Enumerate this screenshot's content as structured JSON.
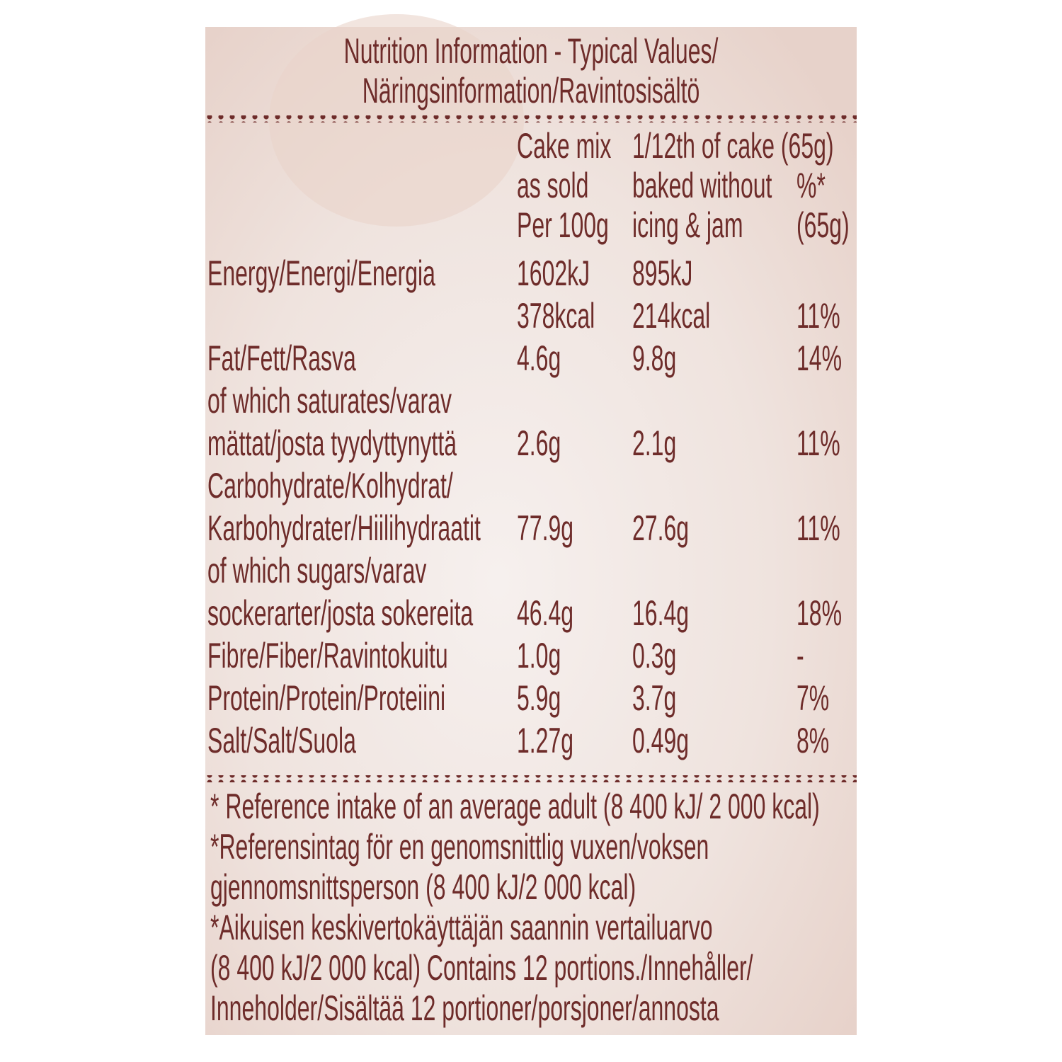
{
  "title": [
    "Nutrition Information - Typical Values/",
    "Näringsinformation/Ravintosisältö"
  ],
  "header": {
    "per100g": [
      "Cake mix",
      "as sold",
      "Per 100g"
    ],
    "per_portion": [
      "1/12th of cake (65g)",
      "baked without",
      "icing & jam"
    ],
    "ri": [
      "%*",
      "(65g)"
    ]
  },
  "rows": [
    {
      "nutrient": [
        "Energy/Energi/Energia"
      ],
      "per100g": [
        "1602kJ",
        "378kcal"
      ],
      "per_portion": [
        "895kJ",
        "214kcal"
      ],
      "ri": "11%"
    },
    {
      "nutrient": [
        "Fat/Fett/Rasva"
      ],
      "per100g": [
        "4.6g"
      ],
      "per_portion": [
        "9.8g"
      ],
      "ri": "14%"
    },
    {
      "nutrient": [
        "of which saturates/varav",
        "mättat/josta tyydyttynyttä"
      ],
      "per100g": [
        "2.6g"
      ],
      "per_portion": [
        "2.1g"
      ],
      "ri": "11%"
    },
    {
      "nutrient": [
        "Carbohydrate/Kolhydrat/",
        "Karbohydrater/Hiilihydraatit"
      ],
      "per100g": [
        "77.9g"
      ],
      "per_portion": [
        "27.6g"
      ],
      "ri": "11%"
    },
    {
      "nutrient": [
        "of which sugars/varav",
        "sockerarter/josta sokereita"
      ],
      "per100g": [
        "46.4g"
      ],
      "per_portion": [
        "16.4g"
      ],
      "ri": "18%"
    },
    {
      "nutrient": [
        "Fibre/Fiber/Ravintokuitu"
      ],
      "per100g": [
        "1.0g"
      ],
      "per_portion": [
        "0.3g"
      ],
      "ri": "-"
    },
    {
      "nutrient": [
        "Protein/Protein/Proteiini"
      ],
      "per100g": [
        "5.9g"
      ],
      "per_portion": [
        "3.7g"
      ],
      "ri": "7%"
    },
    {
      "nutrient": [
        "Salt/Salt/Suola"
      ],
      "per100g": [
        "1.27g"
      ],
      "per_portion": [
        "0.49g"
      ],
      "ri": "8%"
    }
  ],
  "footnote": [
    "* Reference intake of an average adult (8 400 kJ/ 2 000 kcal)",
    "*Referensintag för en genomsnittlig vuxen/voksen",
    "gjennomsnittsperson (8 400 kJ/2 000 kcal)",
    "*Aikuisen keskivertokäyttäjän saannin vertailuarvo",
    "(8 400 kJ/2 000 kcal) Contains 12 portions./Innehåller/",
    "Inneholder/Sisältää 12 portioner/porsjoner/annosta"
  ]
}
